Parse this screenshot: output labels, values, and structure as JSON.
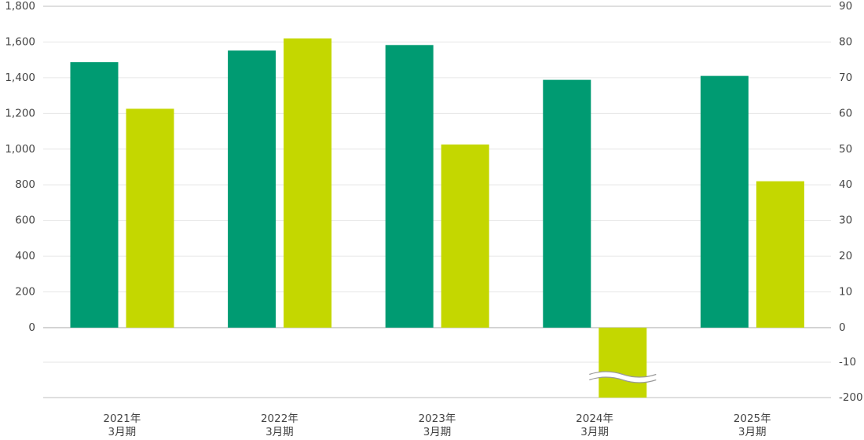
{
  "chart_data": {
    "type": "bar",
    "categories": [
      [
        "2021年",
        "3月期"
      ],
      [
        "2022年",
        "3月期"
      ],
      [
        "2023年",
        "3月期"
      ],
      [
        "2024年",
        "3月期"
      ],
      [
        "2025年",
        "3月期"
      ]
    ],
    "series": [
      {
        "axis": "left",
        "color": "#009B72",
        "values": [
          1487,
          1552,
          1583,
          1388,
          1410
        ]
      },
      {
        "axis": "right",
        "color": "#C4D700",
        "values": [
          61.3,
          81.0,
          51.3,
          -200,
          41.0
        ],
        "axis_break": [
          false,
          false,
          false,
          true,
          false
        ]
      }
    ],
    "left_axis": {
      "ylim": [
        0,
        1800
      ],
      "ticks": [
        0,
        200,
        400,
        600,
        800,
        1000,
        1200,
        1400,
        1600,
        1800
      ],
      "tick_labels": [
        "0",
        "200",
        "400",
        "600",
        "800",
        "1,000",
        "1,200",
        "1,400",
        "1,600",
        "1,800"
      ]
    },
    "right_axis": {
      "ticks": [
        90,
        80,
        70,
        60,
        50,
        40,
        30,
        20,
        10,
        0,
        -10,
        -200
      ],
      "tick_labels": [
        "90",
        "80",
        "70",
        "60",
        "50",
        "40",
        "30",
        "20",
        "10",
        "0",
        "-10",
        "-200"
      ],
      "broken_below": -10
    },
    "grid": true,
    "legend": "none"
  }
}
